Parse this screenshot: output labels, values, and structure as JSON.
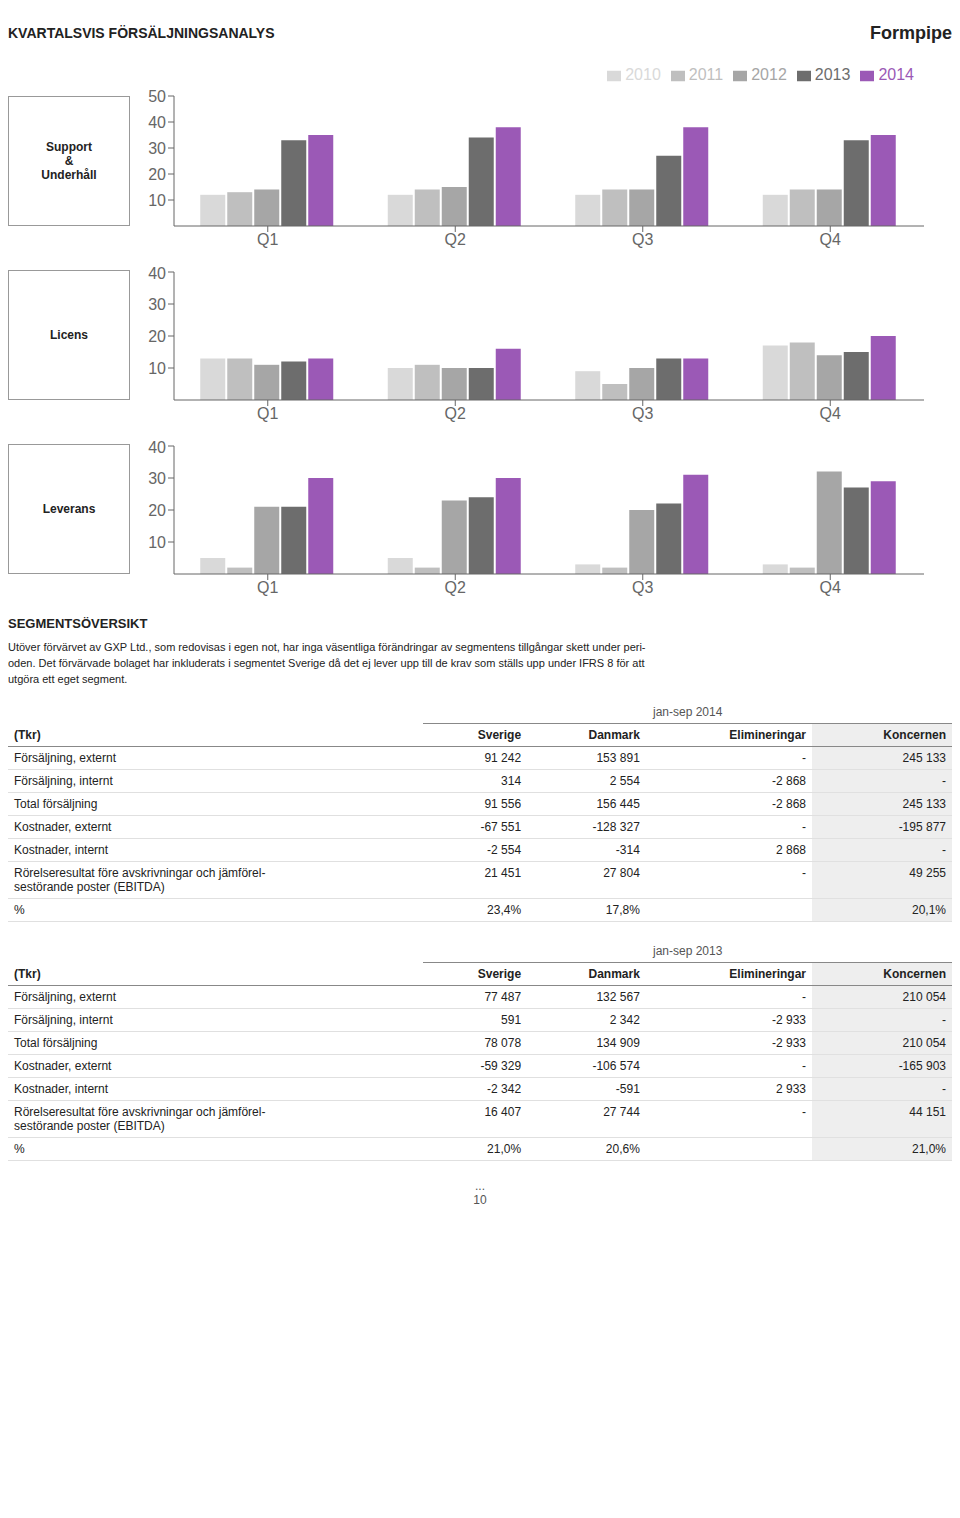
{
  "brand": "Formpipe",
  "title": "KVARTALSVIS FÖRSÄLJNINGSANALYS",
  "chart_data": [
    {
      "type": "bar",
      "title": "Support\n&\nUnderhåll",
      "categories": [
        "Q1",
        "Q2",
        "Q3",
        "Q4"
      ],
      "series": [
        {
          "name": "2010",
          "color": "#d9d9d9",
          "values": [
            12,
            12,
            12,
            12
          ]
        },
        {
          "name": "2011",
          "color": "#bfbfbf",
          "values": [
            13,
            14,
            14,
            14
          ]
        },
        {
          "name": "2012",
          "color": "#a6a6a6",
          "values": [
            14,
            15,
            14,
            14
          ]
        },
        {
          "name": "2013",
          "color": "#6d6d6d",
          "values": [
            33,
            34,
            27,
            33
          ]
        },
        {
          "name": "2014",
          "color": "#9b59b6",
          "values": [
            35,
            38,
            38,
            35
          ]
        }
      ],
      "ylim": [
        0,
        50
      ],
      "yticks": [
        10,
        20,
        30,
        40,
        50
      ],
      "grid": false,
      "legend": "top"
    },
    {
      "type": "bar",
      "title": "Licens",
      "categories": [
        "Q1",
        "Q2",
        "Q3",
        "Q4"
      ],
      "series": [
        {
          "name": "2010",
          "color": "#d9d9d9",
          "values": [
            13,
            10,
            9,
            17
          ]
        },
        {
          "name": "2011",
          "color": "#bfbfbf",
          "values": [
            13,
            11,
            5,
            18
          ]
        },
        {
          "name": "2012",
          "color": "#a6a6a6",
          "values": [
            11,
            10,
            10,
            14
          ]
        },
        {
          "name": "2013",
          "color": "#6d6d6d",
          "values": [
            12,
            10,
            13,
            15
          ]
        },
        {
          "name": "2014",
          "color": "#9b59b6",
          "values": [
            13,
            16,
            13,
            20
          ]
        }
      ],
      "ylim": [
        0,
        40
      ],
      "yticks": [
        10,
        20,
        30,
        40
      ],
      "grid": false
    },
    {
      "type": "bar",
      "title": "Leverans",
      "categories": [
        "Q1",
        "Q2",
        "Q3",
        "Q4"
      ],
      "series": [
        {
          "name": "2010",
          "color": "#d9d9d9",
          "values": [
            5,
            5,
            3,
            3
          ]
        },
        {
          "name": "2011",
          "color": "#bfbfbf",
          "values": [
            2,
            2,
            2,
            2
          ]
        },
        {
          "name": "2012",
          "color": "#a6a6a6",
          "values": [
            21,
            23,
            20,
            32
          ]
        },
        {
          "name": "2013",
          "color": "#6d6d6d",
          "values": [
            21,
            24,
            22,
            27
          ]
        },
        {
          "name": "2014",
          "color": "#9b59b6",
          "values": [
            30,
            30,
            31,
            29
          ]
        }
      ],
      "ylim": [
        0,
        40
      ],
      "yticks": [
        10,
        20,
        30,
        40
      ],
      "grid": false
    }
  ],
  "section_title": "SEGMENTSÖVERSIKT",
  "paragraph": [
    "Utöver förvärvet av GXP Ltd., som redovisas i egen not, har inga väsentliga förändringar av segmentens tillgångar skett under peri-",
    "oden. Det förvärvade bolaget har inkluderats i segmentet Sverige då det ej lever upp till de krav som ställs upp under IFRS 8 för att",
    "utgöra ett eget segment."
  ],
  "tables": [
    {
      "period": "jan-sep 2014",
      "unit_label": "(Tkr)",
      "columns": [
        "Sverige",
        "Danmark",
        "Elimineringar",
        "Koncernen"
      ],
      "rows": [
        {
          "label": "Försäljning, externt",
          "values": [
            "91 242",
            "153 891",
            "-",
            "245 133"
          ]
        },
        {
          "label": "Försäljning, internt",
          "values": [
            "314",
            "2 554",
            "-2 868",
            "-"
          ]
        },
        {
          "label": "Total försäljning",
          "values": [
            "91 556",
            "156 445",
            "-2 868",
            "245 133"
          ]
        },
        {
          "label": "Kostnader, externt",
          "values": [
            "-67 551",
            "-128 327",
            "-",
            "-195 877"
          ]
        },
        {
          "label": "Kostnader, internt",
          "values": [
            "-2 554",
            "-314",
            "2 868",
            "-"
          ]
        },
        {
          "label": "Rörelseresultat före avskrivningar och jämförel-\nsestörande poster (EBITDA)",
          "values": [
            "21 451",
            "27 804",
            "-",
            "49 255"
          ]
        },
        {
          "label": "%",
          "values": [
            "23,4%",
            "17,8%",
            null,
            "20,1%"
          ]
        }
      ]
    },
    {
      "period": "jan-sep 2013",
      "unit_label": "(Tkr)",
      "columns": [
        "Sverige",
        "Danmark",
        "Elimineringar",
        "Koncernen"
      ],
      "rows": [
        {
          "label": "Försäljning, externt",
          "values": [
            "77 487",
            "132 567",
            "-",
            "210 054"
          ]
        },
        {
          "label": "Försäljning, internt",
          "values": [
            "591",
            "2 342",
            "-2 933",
            "-"
          ]
        },
        {
          "label": "Total försäljning",
          "values": [
            "78 078",
            "134 909",
            "-2 933",
            "210 054"
          ]
        },
        {
          "label": "Kostnader, externt",
          "values": [
            "-59 329",
            "-106 574",
            "-",
            "-165 903"
          ]
        },
        {
          "label": "Kostnader, internt",
          "values": [
            "-2 342",
            "-591",
            "2 933",
            "-"
          ]
        },
        {
          "label": "Rörelseresultat före avskrivningar och jämförel-\nsestörande poster (EBITDA)",
          "values": [
            "16 407",
            "27 744",
            "-",
            "44 151"
          ]
        },
        {
          "label": "%",
          "values": [
            "21,0%",
            "20,6%",
            null,
            "21,0%"
          ]
        }
      ]
    }
  ],
  "footer": [
    "...",
    "10"
  ]
}
